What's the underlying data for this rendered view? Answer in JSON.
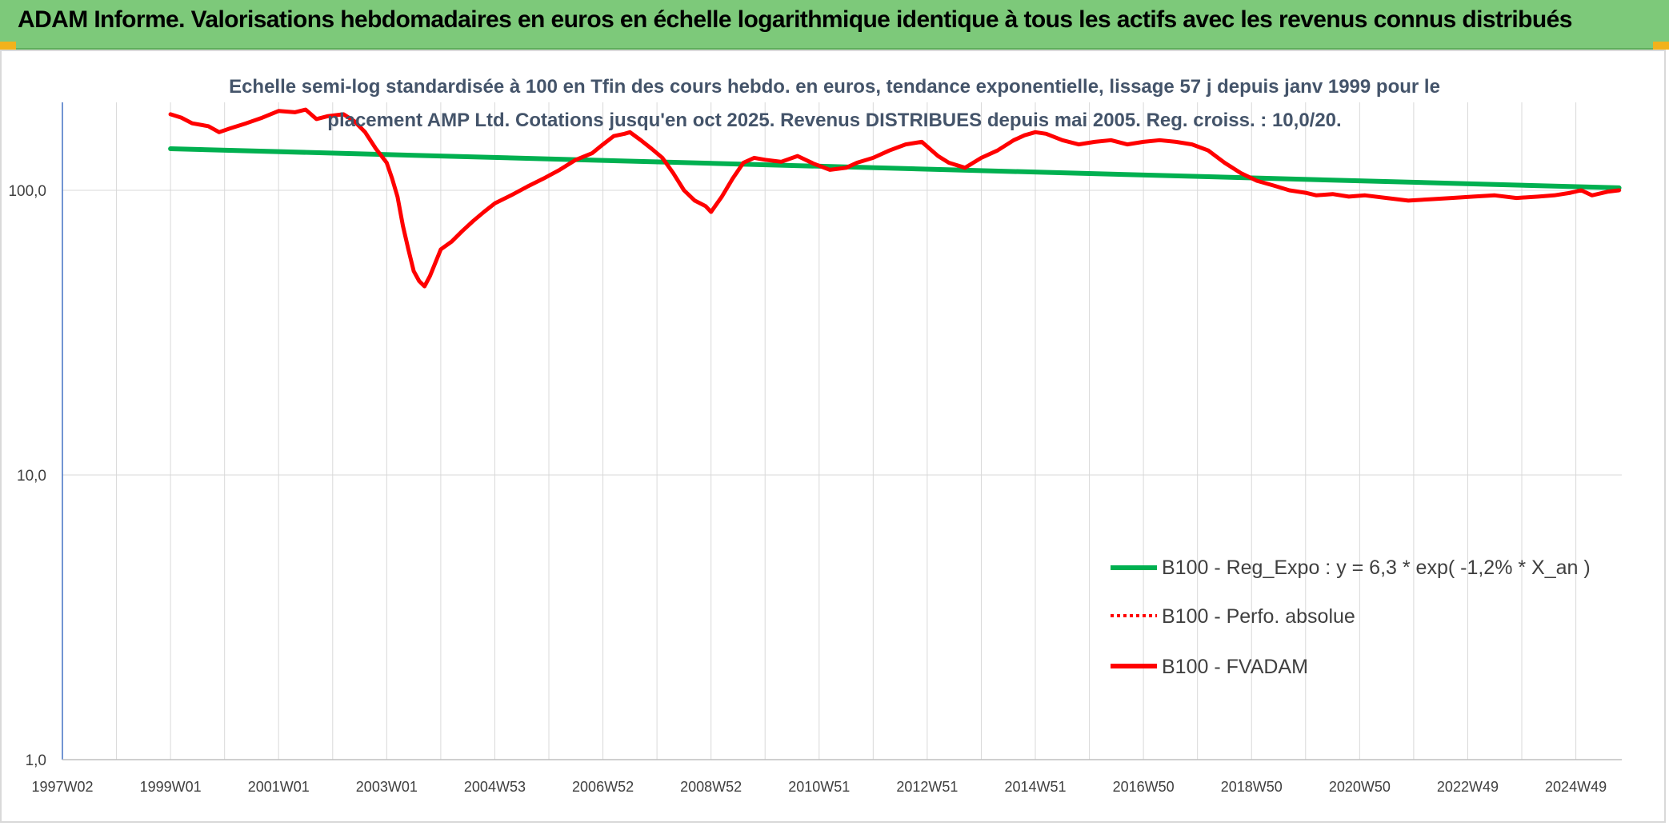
{
  "header": {
    "title": "ADAM Informe. Valorisations hebdomadaires en euros en échelle logarithmique identique à tous les actifs avec les revenus connus distribués"
  },
  "colors": {
    "header_bg": "#7dc97a",
    "trend": "#00b050",
    "fvadam": "#ff0000",
    "perfo": "#ff0000",
    "axis": "#4472c4",
    "grid": "#d9d9d9"
  },
  "chart_data": {
    "type": "line",
    "title": "Echelle semi-log standardisée à 100 en Tfin des cours hebdo. en euros, tendance exponentielle, lissage 57 j depuis janv 1999 pour le placement AMP Ltd. Cotations jusqu'en oct 2025. Revenus DISTRIBUES depuis mai 2005. Reg. croiss. : 10,0/20.",
    "subtitle_lines": [
      "Echelle semi-log standardisée à 100 en Tfin des cours hebdo. en euros, tendance exponentielle, lissage 57 j depuis janv 1999 pour le",
      "placement AMP Ltd. Cotations jusqu'en oct 2025. Revenus DISTRIBUES depuis mai 2005. Reg. croiss. : 10,0/20."
    ],
    "y_scale": "log",
    "ylim": [
      1,
      200
    ],
    "y_ticks": [
      {
        "value": 1,
        "label": "1,0"
      },
      {
        "value": 10,
        "label": "10,0"
      },
      {
        "value": 100,
        "label": "100,0"
      }
    ],
    "xlim": [
      1997.0,
      2025.85
    ],
    "x_ticks": [
      {
        "value": 1997.0,
        "label": "1997W02"
      },
      {
        "value": 1999.0,
        "label": "1999W01"
      },
      {
        "value": 2001.0,
        "label": "2001W01"
      },
      {
        "value": 2003.0,
        "label": "2003W01"
      },
      {
        "value": 2005.0,
        "label": "2004W53"
      },
      {
        "value": 2007.0,
        "label": "2006W52"
      },
      {
        "value": 2009.0,
        "label": "2008W52"
      },
      {
        "value": 2011.0,
        "label": "2010W51"
      },
      {
        "value": 2013.0,
        "label": "2012W51"
      },
      {
        "value": 2015.0,
        "label": "2014W51"
      },
      {
        "value": 2017.0,
        "label": "2016W50"
      },
      {
        "value": 2019.0,
        "label": "2018W50"
      },
      {
        "value": 2021.0,
        "label": "2020W50"
      },
      {
        "value": 2023.0,
        "label": "2022W49"
      },
      {
        "value": 2025.0,
        "label": "2024W49"
      }
    ],
    "grid": "vertical",
    "legend_position": "bottom-right",
    "series": [
      {
        "name": "B100 - Reg_Expo : y = 6,3 * exp( -1,2% *  X_an )",
        "style": "solid",
        "color": "#00b050",
        "x": [
          1999.0,
          2025.8
        ],
        "y": [
          140.0,
          102.0
        ]
      },
      {
        "name": "B100 - Perfo. absolue",
        "style": "dotted",
        "color": "#ff0000",
        "x": [],
        "y": []
      },
      {
        "name": "B100 - FVADAM",
        "style": "solid",
        "color": "#ff0000",
        "x": [
          1999.0,
          1999.2,
          1999.4,
          1999.7,
          1999.9,
          2000.1,
          2000.4,
          2000.7,
          2001.0,
          2001.3,
          2001.5,
          2001.7,
          2001.9,
          2002.2,
          2002.4,
          2002.6,
          2002.8,
          2003.0,
          2003.1,
          2003.2,
          2003.3,
          2003.4,
          2003.5,
          2003.6,
          2003.7,
          2003.8,
          2004.0,
          2004.2,
          2004.4,
          2004.6,
          2004.8,
          2005.0,
          2005.3,
          2005.6,
          2005.9,
          2006.2,
          2006.5,
          2006.8,
          2007.0,
          2007.2,
          2007.4,
          2007.5,
          2007.7,
          2007.9,
          2008.1,
          2008.3,
          2008.5,
          2008.7,
          2008.9,
          2009.0,
          2009.2,
          2009.4,
          2009.6,
          2009.8,
          2010.0,
          2010.3,
          2010.6,
          2010.9,
          2011.2,
          2011.5,
          2011.7,
          2012.0,
          2012.3,
          2012.6,
          2012.9,
          2013.2,
          2013.4,
          2013.7,
          2014.0,
          2014.3,
          2014.6,
          2014.8,
          2015.0,
          2015.2,
          2015.5,
          2015.8,
          2016.1,
          2016.4,
          2016.7,
          2017.0,
          2017.3,
          2017.6,
          2017.9,
          2018.2,
          2018.5,
          2018.8,
          2019.1,
          2019.4,
          2019.7,
          2020.0,
          2020.2,
          2020.5,
          2020.8,
          2021.1,
          2021.5,
          2021.9,
          2022.3,
          2022.7,
          2023.1,
          2023.5,
          2023.9,
          2024.3,
          2024.6,
          2024.9,
          2025.1,
          2025.3,
          2025.6,
          2025.8
        ],
        "y": [
          185,
          180,
          172,
          168,
          160,
          165,
          172,
          180,
          190,
          188,
          192,
          178,
          182,
          185,
          175,
          160,
          140,
          125,
          110,
          95,
          75,
          62,
          52,
          48,
          46,
          50,
          62,
          66,
          72,
          78,
          84,
          90,
          96,
          103,
          110,
          118,
          128,
          135,
          145,
          155,
          158,
          160,
          150,
          140,
          130,
          115,
          100,
          92,
          88,
          84,
          95,
          110,
          125,
          130,
          128,
          126,
          132,
          124,
          118,
          120,
          125,
          130,
          138,
          145,
          148,
          132,
          125,
          120,
          130,
          138,
          150,
          156,
          160,
          158,
          150,
          145,
          148,
          150,
          145,
          148,
          150,
          148,
          145,
          138,
          125,
          115,
          108,
          104,
          100,
          98,
          96,
          97,
          95,
          96,
          94,
          92,
          93,
          94,
          95,
          96,
          94,
          95,
          96,
          98,
          100,
          96,
          99,
          100
        ]
      }
    ]
  }
}
